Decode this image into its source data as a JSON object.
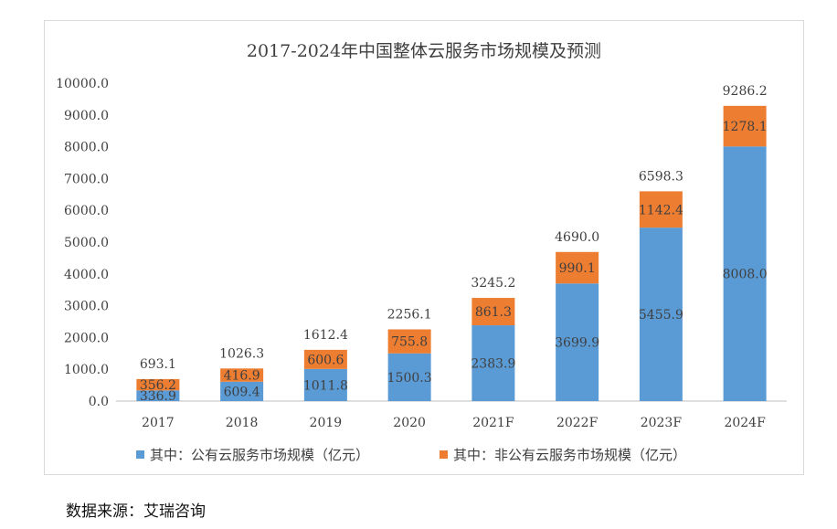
{
  "chart_data": {
    "type": "bar",
    "stacked": true,
    "title": "2017-2024年中国整体云服务市场规模及预测",
    "categories": [
      "2017",
      "2018",
      "2019",
      "2020",
      "2021F",
      "2022F",
      "2023F",
      "2024F"
    ],
    "series": [
      {
        "name": "其中：公有云服务市场规模（亿元）",
        "color": "#5b9bd5",
        "values": [
          336.9,
          609.4,
          1011.8,
          1500.3,
          2383.9,
          3699.9,
          5455.9,
          8008.0
        ],
        "labels": [
          "336.9",
          "609.4",
          "1011.8",
          "1500.3",
          "2383.9",
          "3699.9",
          "5455.9",
          "8008.0"
        ]
      },
      {
        "name": "其中：非公有云服务市场规模（亿元）",
        "color": "#ed7d31",
        "values": [
          356.2,
          416.9,
          600.6,
          755.8,
          861.3,
          990.1,
          1142.4,
          1278.1
        ],
        "labels": [
          "356.2",
          "416.9",
          "600.6",
          "755.8",
          "861.3",
          "990.1",
          "1142.4",
          "1278.1"
        ]
      }
    ],
    "totals": [
      "693.1",
      "1026.3",
      "1612.4",
      "2256.1",
      "3245.2",
      "4690.0",
      "6598.3",
      "9286.2"
    ],
    "ylim": [
      0,
      10000
    ],
    "yticks": [
      "0.0",
      "1000.0",
      "2000.0",
      "3000.0",
      "4000.0",
      "5000.0",
      "6000.0",
      "7000.0",
      "8000.0",
      "9000.0",
      "10000.0"
    ],
    "xlabel": "",
    "ylabel": "",
    "grid": false,
    "legend_position": "bottom"
  },
  "source": "数据来源：艾瑞咨询"
}
